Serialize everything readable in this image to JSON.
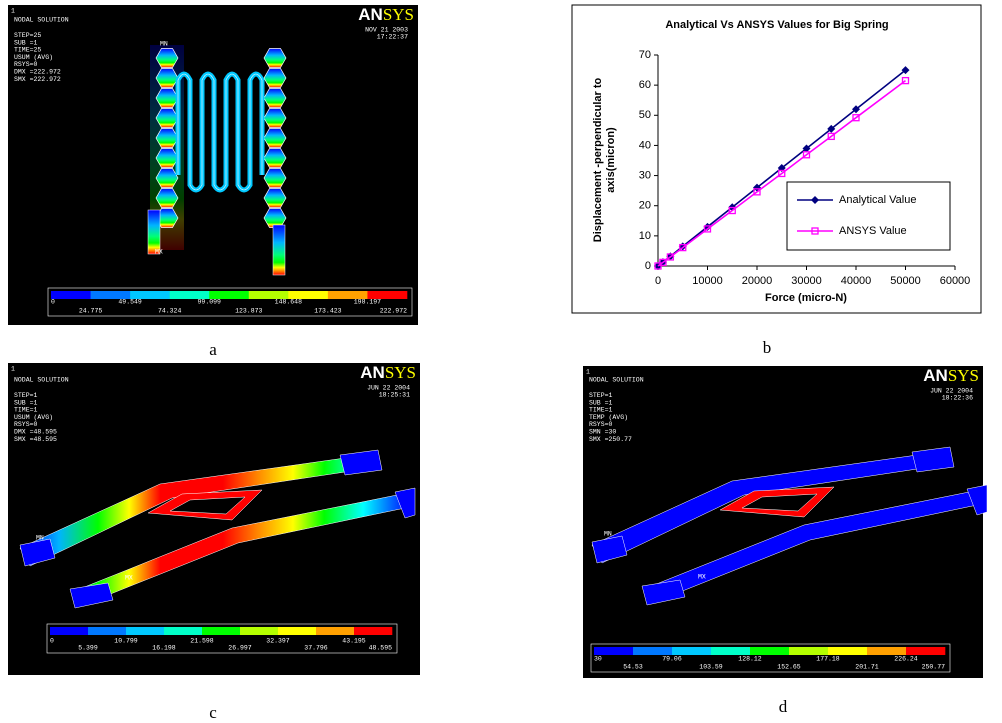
{
  "chart_data": {
    "type": "line",
    "title": "Analytical Vs ANSYS Values for Big Spring",
    "xlabel": "Force (micro-N)",
    "ylabel": [
      "Displacement -perpendicular to",
      "axis(micron)"
    ],
    "x": [
      0,
      1000,
      2500,
      5000,
      10000,
      15000,
      20000,
      25000,
      30000,
      35000,
      40000,
      50000
    ],
    "series": [
      {
        "name": "Analytical Value",
        "color": "#000080",
        "marker": "diamond",
        "values": [
          0,
          1.3,
          3.2,
          6.5,
          13,
          19.5,
          26,
          32.5,
          39,
          45.5,
          52,
          65
        ]
      },
      {
        "name": "ANSYS Value",
        "color": "#ff00ff",
        "marker": "square",
        "values": [
          0,
          1.2,
          3.0,
          6.1,
          12.3,
          18.4,
          24.6,
          30.7,
          36.9,
          43,
          49.2,
          61.5
        ]
      }
    ],
    "xlim": [
      0,
      60000
    ],
    "xticks": [
      0,
      10000,
      20000,
      30000,
      40000,
      50000,
      60000
    ],
    "ylim": [
      0,
      70
    ],
    "yticks": [
      0,
      10,
      20,
      30,
      40,
      50,
      60,
      70
    ],
    "legend": "lower right",
    "grid": false
  },
  "panels": [
    {
      "number": "1",
      "header": [
        "NODAL SOLUTION",
        "STEP=25",
        "SUB =1",
        "TIME=25",
        "USUM    (AVG)",
        "RSYS=0",
        "DMX =222.972",
        "SMX =222.972"
      ],
      "logo": [
        "AN",
        "SYS"
      ],
      "date": "NOV 21 2003",
      "time": "17:22:37",
      "markers": [
        "MN",
        "MX"
      ],
      "colorbar_labels": [
        "0",
        "24.775",
        "49.549",
        "74.324",
        "99.099",
        "123.873",
        "148.648",
        "173.423",
        "198.197",
        "222.972"
      ]
    },
    {
      "number": "1",
      "header": [
        "NODAL SOLUTION",
        "STEP=1",
        "SUB =1",
        "TIME=1",
        "USUM    (AVG)",
        "RSYS=0",
        "DMX =48.595",
        "SMX =48.595"
      ],
      "logo": [
        "AN",
        "SYS"
      ],
      "date": "JUN 22 2004",
      "time": "18:25:31",
      "markers": [
        "MN",
        "MX"
      ],
      "colorbar_labels": [
        "0",
        "5.399",
        "10.799",
        "16.198",
        "21.598",
        "26.997",
        "32.397",
        "37.796",
        "43.195",
        "48.595"
      ]
    },
    {
      "number": "1",
      "header": [
        "NODAL SOLUTION",
        "STEP=1",
        "SUB =1",
        "TIME=1",
        "TEMP    (AVG)",
        "RSYS=0",
        "SMN =30",
        "SMX =250.77"
      ],
      "logo": [
        "AN",
        "SYS"
      ],
      "date": "JUN 22 2004",
      "time": "18:22:36",
      "markers": [
        "MN",
        "MX"
      ],
      "colorbar_labels": [
        "30",
        "54.53",
        "79.06",
        "103.59",
        "128.12",
        "152.65",
        "177.18",
        "201.71",
        "226.24",
        "250.77"
      ]
    }
  ],
  "captions": [
    "a",
    "b",
    "c",
    "d"
  ]
}
